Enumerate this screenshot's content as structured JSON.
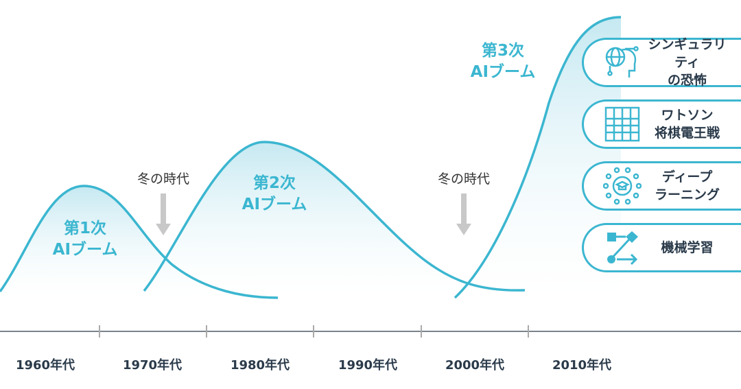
{
  "colors": {
    "accent": "#3bb6d0",
    "axis": "#7a838c",
    "arrow": "#c8c8c8",
    "text": "#2a3a4a"
  },
  "decades": [
    "1960年代",
    "1970年代",
    "1980年代",
    "1990年代",
    "2000年代",
    "2010年代"
  ],
  "winters": [
    "冬の時代",
    "冬の時代"
  ],
  "booms": [
    {
      "line1": "第1次",
      "line2": "AIブーム"
    },
    {
      "line1": "第2次",
      "line2": "AIブーム"
    },
    {
      "line1": "第3次",
      "line2": "AIブーム"
    }
  ],
  "topics": [
    {
      "icon": "ai-head-globe-icon",
      "line1": "シンギュラリティ",
      "line2": "の恐怖"
    },
    {
      "icon": "shogi-board-icon",
      "line1": "ワトソン",
      "line2": "将棋電王戦"
    },
    {
      "icon": "neural-network-graduation-icon",
      "line1": "ディープ",
      "line2": "ラーニング"
    },
    {
      "icon": "flow-diagram-icon",
      "line1": "機械学習",
      "line2": ""
    }
  ]
}
